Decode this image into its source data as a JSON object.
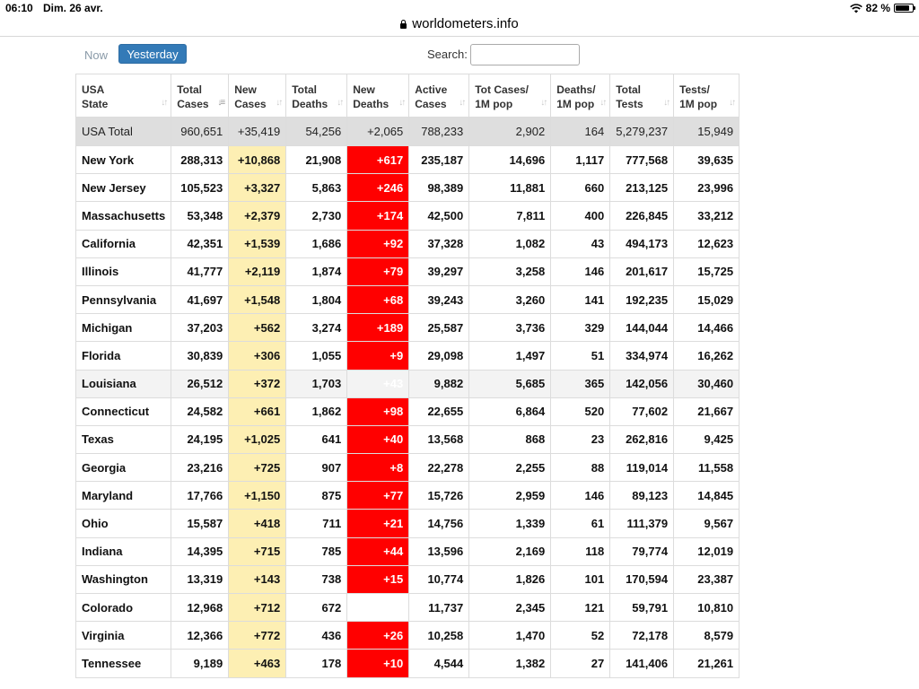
{
  "status_bar": {
    "time": "06:10",
    "date": "Dim. 26 avr.",
    "battery": "82 %"
  },
  "browser": {
    "domain": "worldometers.info"
  },
  "controls": {
    "now_label": "Now",
    "yesterday_label": "Yesterday",
    "search_label": "Search:",
    "search_value": ""
  },
  "table": {
    "headers": [
      [
        "USA",
        "State"
      ],
      [
        "Total",
        "Cases"
      ],
      [
        "New",
        "Cases"
      ],
      [
        "Total",
        "Deaths"
      ],
      [
        "New",
        "Deaths"
      ],
      [
        "Active",
        "Cases"
      ],
      [
        "Tot Cases/",
        "1M pop"
      ],
      [
        "Deaths/",
        "1M pop"
      ],
      [
        "Total",
        "Tests"
      ],
      [
        "Tests/",
        "1M pop"
      ]
    ],
    "total_row": [
      "USA Total",
      "960,651",
      "+35,419",
      "54,256",
      "+2,065",
      "788,233",
      "2,902",
      "164",
      "5,279,237",
      "15,949"
    ],
    "rows": [
      [
        "New York",
        "288,313",
        "+10,868",
        "21,908",
        "+617",
        "235,187",
        "14,696",
        "1,117",
        "777,568",
        "39,635"
      ],
      [
        "New Jersey",
        "105,523",
        "+3,327",
        "5,863",
        "+246",
        "98,389",
        "11,881",
        "660",
        "213,125",
        "23,996"
      ],
      [
        "Massachusetts",
        "53,348",
        "+2,379",
        "2,730",
        "+174",
        "42,500",
        "7,811",
        "400",
        "226,845",
        "33,212"
      ],
      [
        "California",
        "42,351",
        "+1,539",
        "1,686",
        "+92",
        "37,328",
        "1,082",
        "43",
        "494,173",
        "12,623"
      ],
      [
        "Illinois",
        "41,777",
        "+2,119",
        "1,874",
        "+79",
        "39,297",
        "3,258",
        "146",
        "201,617",
        "15,725"
      ],
      [
        "Pennsylvania",
        "41,697",
        "+1,548",
        "1,804",
        "+68",
        "39,243",
        "3,260",
        "141",
        "192,235",
        "15,029"
      ],
      [
        "Michigan",
        "37,203",
        "+562",
        "3,274",
        "+189",
        "25,587",
        "3,736",
        "329",
        "144,044",
        "14,466"
      ],
      [
        "Florida",
        "30,839",
        "+306",
        "1,055",
        "+9",
        "29,098",
        "1,497",
        "51",
        "334,974",
        "16,262"
      ],
      [
        "Louisiana",
        "26,512",
        "+372",
        "1,703",
        "+43",
        "9,882",
        "5,685",
        "365",
        "142,056",
        "30,460"
      ],
      [
        "Connecticut",
        "24,582",
        "+661",
        "1,862",
        "+98",
        "22,655",
        "6,864",
        "520",
        "77,602",
        "21,667"
      ],
      [
        "Texas",
        "24,195",
        "+1,025",
        "641",
        "+40",
        "13,568",
        "868",
        "23",
        "262,816",
        "9,425"
      ],
      [
        "Georgia",
        "23,216",
        "+725",
        "907",
        "+8",
        "22,278",
        "2,255",
        "88",
        "119,014",
        "11,558"
      ],
      [
        "Maryland",
        "17,766",
        "+1,150",
        "875",
        "+77",
        "15,726",
        "2,959",
        "146",
        "89,123",
        "14,845"
      ],
      [
        "Ohio",
        "15,587",
        "+418",
        "711",
        "+21",
        "14,756",
        "1,339",
        "61",
        "111,379",
        "9,567"
      ],
      [
        "Indiana",
        "14,395",
        "+715",
        "785",
        "+44",
        "13,596",
        "2,169",
        "118",
        "79,774",
        "12,019"
      ],
      [
        "Washington",
        "13,319",
        "+143",
        "738",
        "+15",
        "10,774",
        "1,826",
        "101",
        "170,594",
        "23,387"
      ],
      [
        "Colorado",
        "12,968",
        "+712",
        "672",
        "",
        "11,737",
        "2,345",
        "121",
        "59,791",
        "10,810"
      ],
      [
        "Virginia",
        "12,366",
        "+772",
        "436",
        "+26",
        "10,258",
        "1,470",
        "52",
        "72,178",
        "8,579"
      ],
      [
        "Tennessee",
        "9,189",
        "+463",
        "178",
        "+10",
        "4,544",
        "1,382",
        "27",
        "141,406",
        "21,261"
      ]
    ]
  },
  "colors": {
    "new_cases_bg": "#fdefb3",
    "new_deaths_bg": "#ff0000",
    "total_row_bg": "#dedede",
    "button_blue": "#337ab7"
  }
}
